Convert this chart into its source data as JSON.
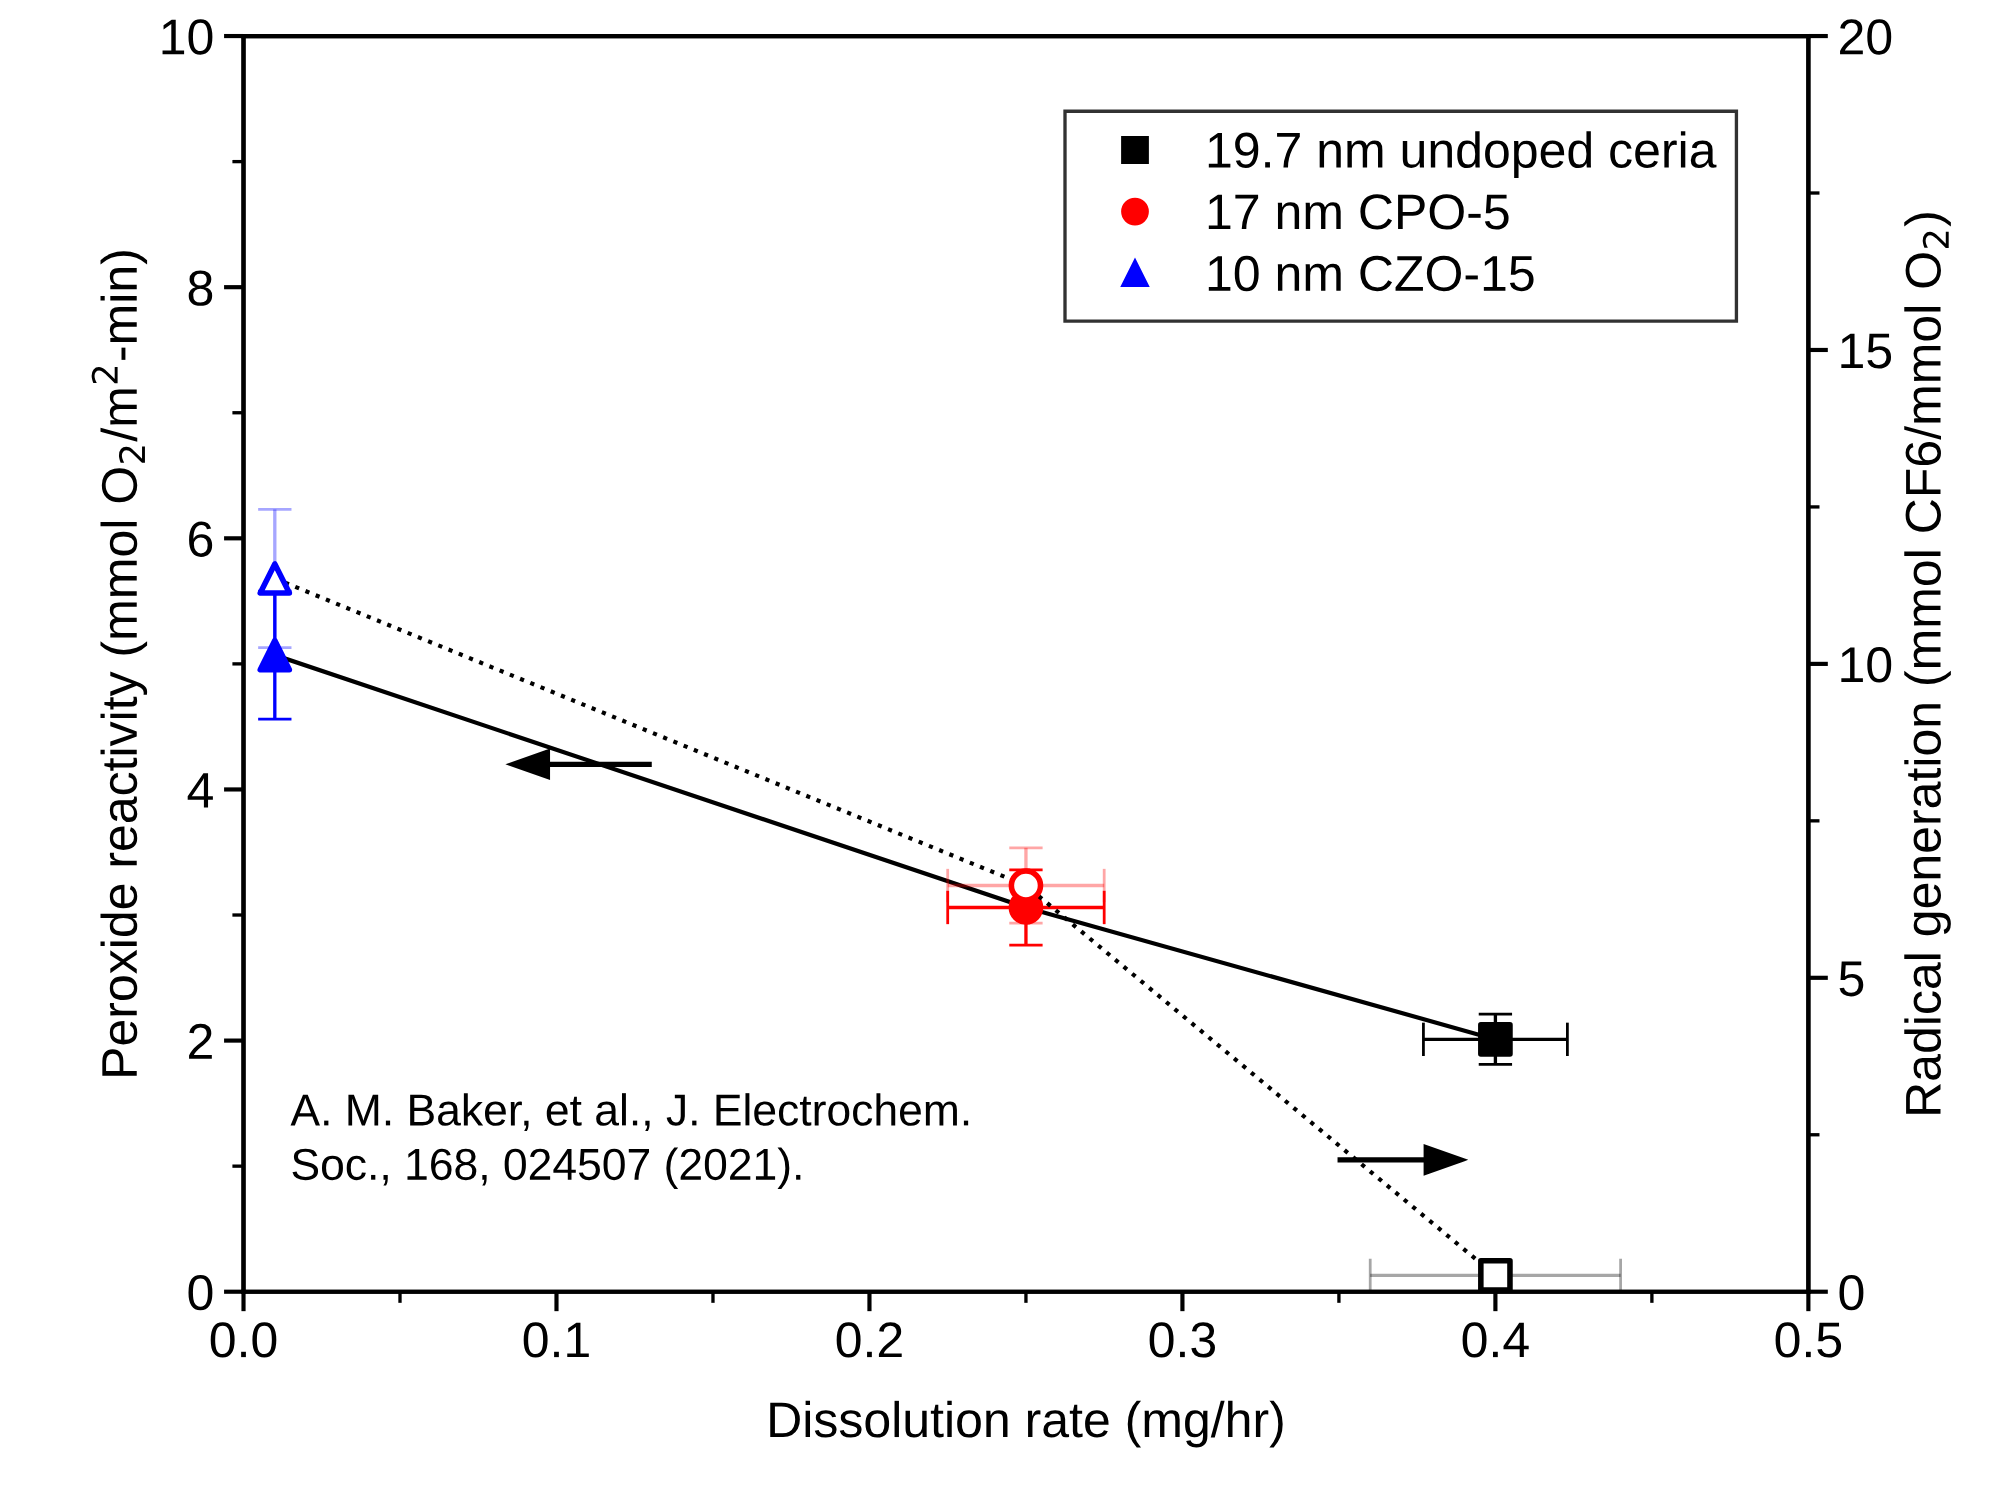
{
  "chart_data": {
    "type": "scatter",
    "xlabel": "Dissolution rate (mg/hr)",
    "ylabel": "Peroxide reactivity (mmol O$_{2}$/m$^{2}$-min)",
    "y2label": "Radical generation (mmol CF6/mmol O$_{2}$)",
    "xlim": [
      0,
      0.5
    ],
    "xticks": [
      {
        "value": 0,
        "label": "0.0"
      },
      0.1,
      0.2,
      0.3,
      0.4,
      0.5
    ],
    "ylim": [
      0,
      10
    ],
    "yticks": [
      0,
      2,
      4,
      6,
      8,
      10
    ],
    "y2lim": [
      0,
      20
    ],
    "y2ticks": [
      0,
      5,
      10,
      15,
      20
    ],
    "grid": false,
    "legend": "top right",
    "series": [
      {
        "name": "19.7 nm undoped ceria",
        "color": "#000000",
        "marker": "square",
        "x": [
          0.4
        ],
        "values": [
          2.01
        ],
        "errors": [
          0.2
        ],
        "xerrors": [
          0.023
        ]
      },
      {
        "name": "17 nm CPO-5",
        "color": "#ff0000",
        "marker": "circle",
        "x": [
          0.25
        ],
        "values": [
          3.06
        ],
        "errors": [
          0.3
        ],
        "xerrors": [
          0.025
        ]
      },
      {
        "name": "10 nm CZO-15",
        "color": "#0000ff",
        "marker": "triangle",
        "x": [
          0.01
        ],
        "values": [
          5.07
        ],
        "errors": [
          0.51
        ]
      },
      {
        "type": "line",
        "color": "#000000",
        "line_style": "solid",
        "marker": "none",
        "x": [
          0.01,
          0.25,
          0.4
        ],
        "values": [
          5.07,
          3.06,
          2.01
        ]
      },
      {
        "axis": "y2",
        "color": "#0000ff",
        "marker": "triangle",
        "x": [
          0.01
        ],
        "values": [
          11.36
        ],
        "errors": [
          1.1
        ]
      },
      {
        "axis": "y2",
        "color": "#ff0000",
        "marker": "circle",
        "x": [
          0.25
        ],
        "values": [
          6.47
        ],
        "errors": [
          0.6
        ],
        "xerrors": [
          0.025
        ]
      },
      {
        "axis": "y2",
        "color": "#000000",
        "marker": "square",
        "x": [
          0.4
        ],
        "values": [
          0.26
        ],
        "errors": [
          0.15
        ],
        "xerrors": [
          0.04
        ]
      },
      {
        "type": "line",
        "axis": "y2",
        "color": "#000000",
        "line_style": "dotted",
        "marker": "none",
        "x": [
          0.01,
          0.25,
          0.4
        ],
        "values": [
          11.36,
          6.47,
          0.26
        ]
      }
    ],
    "annotations": [
      "A. M. Baker, et al., J. Electrochem.\nSoc., 168, 024507 (2021)."
    ]
  }
}
